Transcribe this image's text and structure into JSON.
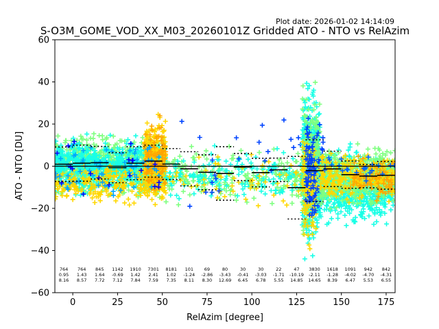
{
  "chart_data": {
    "type": "scatter",
    "title": "S-O3M_GOME_VOD_XX_M03_20260101Z Gridded ATO - NTO vs RelAzim",
    "plot_date": "Plot date: 2026-01-02 14:14:09",
    "xlabel": "RelAzim [degree]",
    "ylabel": "ATO - NTO [DU]",
    "xlim": [
      -10,
      180
    ],
    "ylim": [
      -60,
      60
    ],
    "xticks": [
      0,
      25,
      50,
      75,
      100,
      125,
      150,
      175
    ],
    "yticks": [
      -60,
      -40,
      -20,
      0,
      20,
      40,
      60
    ],
    "zero_line": 0,
    "bins": [
      {
        "x0": -10,
        "x1": 0,
        "n": "764",
        "mean": "0.95",
        "std": "8.16"
      },
      {
        "x0": 0,
        "x1": 10,
        "n": "764",
        "mean": "1.43",
        "std": "8.57"
      },
      {
        "x0": 10,
        "x1": 20,
        "n": "845",
        "mean": "1.64",
        "std": "7.72"
      },
      {
        "x0": 20,
        "x1": 30,
        "n": "1142",
        "mean": "-0.69",
        "std": "7.12"
      },
      {
        "x0": 30,
        "x1": 40,
        "n": "1910",
        "mean": "1.42",
        "std": "7.84"
      },
      {
        "x0": 40,
        "x1": 50,
        "n": "7301",
        "mean": "2.41",
        "std": "7.59"
      },
      {
        "x0": 50,
        "x1": 60,
        "n": "8181",
        "mean": "1.02",
        "std": "7.35"
      },
      {
        "x0": 60,
        "x1": 70,
        "n": "101",
        "mean": "-1.24",
        "std": "8.11"
      },
      {
        "x0": 70,
        "x1": 80,
        "n": "69",
        "mean": "-2.86",
        "std": "8.30"
      },
      {
        "x0": 80,
        "x1": 90,
        "n": "80",
        "mean": "-3.43",
        "std": "12.69"
      },
      {
        "x0": 90,
        "x1": 100,
        "n": "30",
        "mean": "-0.41",
        "std": "6.45"
      },
      {
        "x0": 100,
        "x1": 110,
        "n": "30",
        "mean": "-3.03",
        "std": "6.78"
      },
      {
        "x0": 110,
        "x1": 120,
        "n": "22",
        "mean": "-1.71",
        "std": "5.55"
      },
      {
        "x0": 120,
        "x1": 130,
        "n": "47",
        "mean": "-10.19",
        "std": "14.85"
      },
      {
        "x0": 130,
        "x1": 140,
        "n": "3830",
        "mean": "-2.11",
        "std": "14.65"
      },
      {
        "x0": 140,
        "x1": 150,
        "n": "1618",
        "mean": "-1.28",
        "std": "8.39"
      },
      {
        "x0": 150,
        "x1": 160,
        "n": "1091",
        "mean": "-4.02",
        "std": "6.47"
      },
      {
        "x0": 160,
        "x1": 170,
        "n": "942",
        "mean": "-4.70",
        "std": "5.53"
      },
      {
        "x0": 170,
        "x1": 180,
        "n": "842",
        "mean": "-4.31",
        "std": "6.55"
      }
    ],
    "clusters": [
      {
        "x0": -10,
        "x1": 52,
        "ymin": -20,
        "ymax": 20,
        "color": "#7fff80",
        "count": 900
      },
      {
        "x0": -10,
        "x1": 52,
        "ymin": -18,
        "ymax": 18,
        "color": "#19ffe6",
        "count": 700
      },
      {
        "x0": -10,
        "x1": 52,
        "ymin": -22,
        "ymax": 5,
        "color": "#ffd700",
        "count": 260
      },
      {
        "x0": 40,
        "x1": 52,
        "ymin": -22,
        "ymax": 30,
        "color": "#ffd700",
        "count": 260
      },
      {
        "x0": 40,
        "x1": 52,
        "ymin": -20,
        "ymax": 28,
        "color": "#ffa500",
        "count": 120
      },
      {
        "x0": -10,
        "x1": 52,
        "ymin": -25,
        "ymax": 25,
        "color": "#00a6ff",
        "count": 70
      },
      {
        "x0": -10,
        "x1": 52,
        "ymin": -27,
        "ymax": 20,
        "color": "#0000ff",
        "count": 20
      },
      {
        "x0": 52,
        "x1": 128,
        "ymin": -25,
        "ymax": 15,
        "color": "#7fff80",
        "count": 220
      },
      {
        "x0": 52,
        "x1": 128,
        "ymin": -22,
        "ymax": 12,
        "color": "#19ffe6",
        "count": 160
      },
      {
        "x0": 52,
        "x1": 128,
        "ymin": -25,
        "ymax": 15,
        "color": "#ffd700",
        "count": 60
      },
      {
        "x0": 52,
        "x1": 128,
        "ymin": -30,
        "ymax": 35,
        "color": "#0044ff",
        "count": 22
      },
      {
        "x0": 128,
        "x1": 138,
        "ymin": -55,
        "ymax": 55,
        "color": "#19ffe6",
        "count": 500
      },
      {
        "x0": 128,
        "x1": 138,
        "ymin": -45,
        "ymax": 45,
        "color": "#7fff80",
        "count": 300
      },
      {
        "x0": 128,
        "x1": 136,
        "ymin": -50,
        "ymax": 30,
        "color": "#ffd700",
        "count": 140
      },
      {
        "x0": 130,
        "x1": 140,
        "ymin": -40,
        "ymax": 35,
        "color": "#0044ff",
        "count": 120
      },
      {
        "x0": 138,
        "x1": 180,
        "ymin": -35,
        "ymax": 15,
        "color": "#19ffe6",
        "count": 650
      },
      {
        "x0": 138,
        "x1": 180,
        "ymin": -25,
        "ymax": 15,
        "color": "#7fff80",
        "count": 550
      },
      {
        "x0": 138,
        "x1": 180,
        "ymin": -22,
        "ymax": 12,
        "color": "#ffd700",
        "count": 250
      },
      {
        "x0": 155,
        "x1": 180,
        "ymin": -20,
        "ymax": 10,
        "color": "#ffa500",
        "count": 80
      },
      {
        "x0": 138,
        "x1": 180,
        "ymin": -10,
        "ymax": 10,
        "color": "#0066ff",
        "count": 25
      }
    ]
  }
}
